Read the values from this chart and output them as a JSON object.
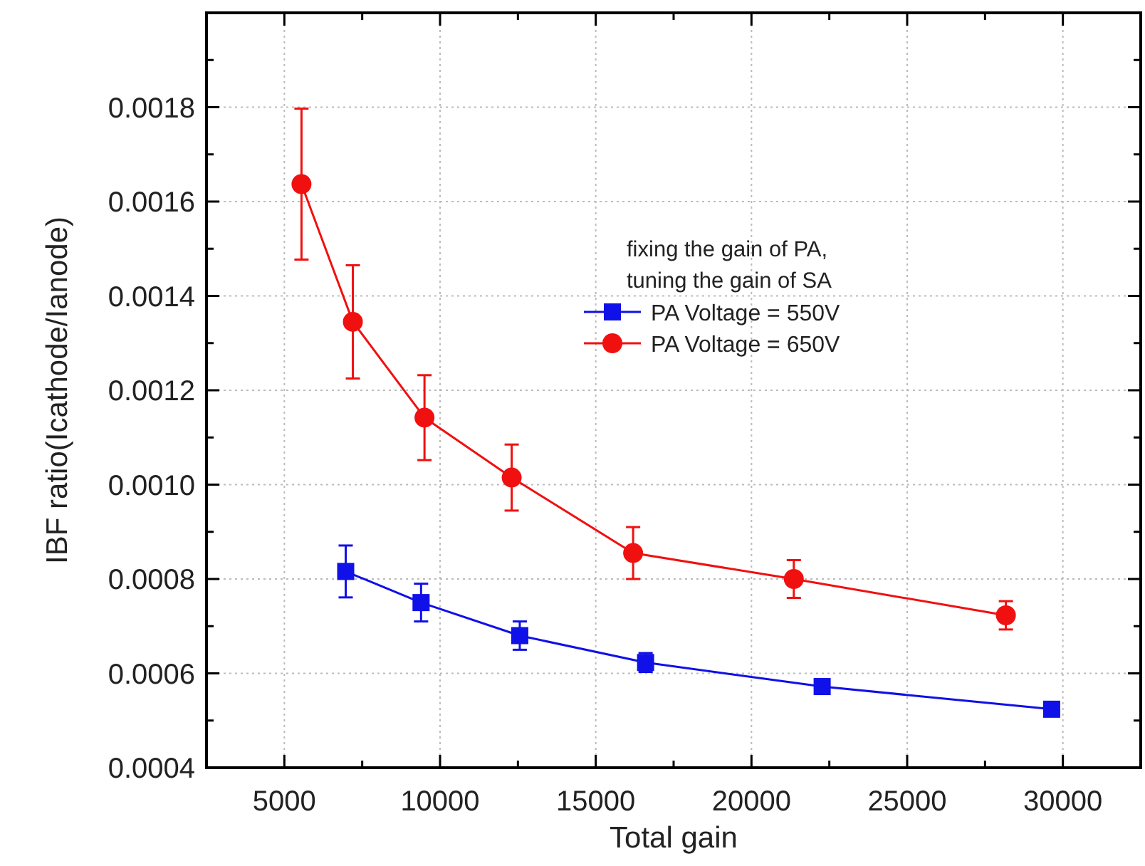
{
  "chart_data": {
    "type": "line",
    "xlabel": "Total gain",
    "ylabel": "IBF ratio(Icathode/Ianode)",
    "legend_title": "fixing the gain of PA,\ntuning the gain of SA",
    "legend": "top right",
    "grid": true,
    "line_style": "solid",
    "xlim": [
      2500,
      32500
    ],
    "xticks": [
      5000,
      {
        "value": 7500,
        "label": null
      },
      10000,
      {
        "value": 12500,
        "label": null
      },
      15000,
      {
        "value": 17500,
        "label": null
      },
      20000,
      {
        "value": 22500,
        "label": null
      },
      25000,
      {
        "value": 27500,
        "label": null
      },
      30000
    ],
    "ylim": [
      0.0004,
      0.002
    ],
    "yticks": [
      0.0004,
      {
        "value": 0.0005,
        "label": null
      },
      0.0006,
      {
        "value": 0.0007,
        "label": null
      },
      0.0008,
      {
        "value": 0.0009,
        "label": null
      },
      "0.0010",
      {
        "value": 0.0011,
        "label": null
      },
      0.0012,
      {
        "value": 0.0013,
        "label": null
      },
      0.0014,
      {
        "value": 0.0015,
        "label": null
      },
      0.0016,
      {
        "value": 0.0017,
        "label": null
      },
      0.0018,
      {
        "value": 0.0019,
        "label": null
      }
    ],
    "series": [
      {
        "name": "PA Voltage = 550V",
        "color": "#1010e8",
        "marker": "square",
        "x": [
          6970,
          9390,
          12560,
          16600,
          22270,
          29640
        ],
        "values": [
          0.000816,
          0.00075,
          0.00068,
          0.000623,
          0.000572,
          0.000524
        ],
        "errors": [
          5.5e-05,
          4e-05,
          3e-05,
          2e-05,
          1e-05,
          1e-05
        ]
      },
      {
        "name": "PA Voltage = 650V",
        "color": "#f01010",
        "marker": "circle",
        "x": [
          5550,
          7200,
          9500,
          12300,
          16200,
          21360,
          28170
        ],
        "values": [
          0.001637,
          0.001345,
          0.001142,
          0.001015,
          0.000855,
          0.0008,
          0.000723
        ],
        "errors": [
          0.00016,
          0.00012,
          9e-05,
          7e-05,
          5.5e-05,
          4e-05,
          3e-05
        ]
      }
    ]
  }
}
